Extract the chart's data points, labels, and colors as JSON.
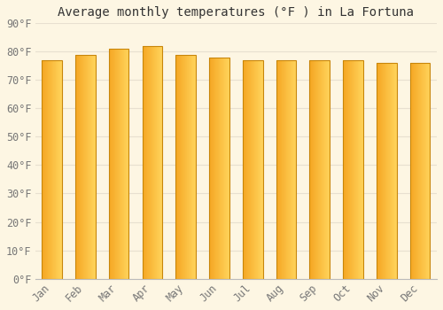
{
  "title": "Average monthly temperatures (°F ) in La Fortuna",
  "months": [
    "Jan",
    "Feb",
    "Mar",
    "Apr",
    "May",
    "Jun",
    "Jul",
    "Aug",
    "Sep",
    "Oct",
    "Nov",
    "Dec"
  ],
  "values": [
    77,
    79,
    81,
    82,
    79,
    78,
    77,
    77,
    77,
    77,
    76,
    76
  ],
  "bar_color_left": "#F5A623",
  "bar_color_right": "#FFD35A",
  "bar_edge_color": "#C8860A",
  "ylim": [
    0,
    90
  ],
  "yticks": [
    0,
    10,
    20,
    30,
    40,
    50,
    60,
    70,
    80,
    90
  ],
  "ytick_labels": [
    "0°F",
    "10°F",
    "20°F",
    "30°F",
    "40°F",
    "50°F",
    "60°F",
    "70°F",
    "80°F",
    "90°F"
  ],
  "background_color": "#FDF6E3",
  "grid_color": "#E8E0D0",
  "title_fontsize": 10,
  "tick_fontsize": 8.5,
  "font_family": "monospace",
  "bar_width": 0.6
}
